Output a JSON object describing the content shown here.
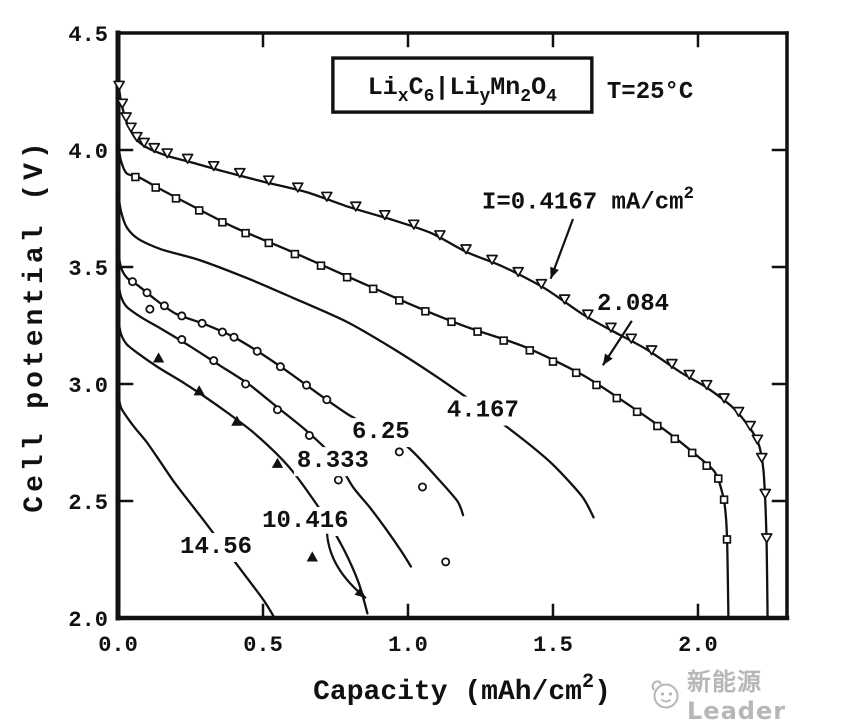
{
  "watermark": {
    "text": "新能源Leader"
  },
  "chart_data": {
    "type": "line",
    "ylabel": "Cell potential (V)",
    "xlabel_segments": [
      {
        "t": "Capacity (mAh/cm"
      },
      {
        "t": "2",
        "s": "sup"
      },
      {
        "t": ")"
      }
    ],
    "xlim": [
      0,
      2.307
    ],
    "ylim": [
      2.0,
      4.5
    ],
    "xticks": [
      {
        "v": 0.0,
        "label": "0.0"
      },
      {
        "v": 0.5,
        "label": "0.5"
      },
      {
        "v": 1.0,
        "label": "1.0"
      },
      {
        "v": 1.5,
        "label": "1.5"
      },
      {
        "v": 2.0,
        "label": "2.0"
      }
    ],
    "yticks": [
      {
        "v": 2.0,
        "label": "2.0"
      },
      {
        "v": 2.5,
        "label": "2.5"
      },
      {
        "v": 3.0,
        "label": "3.0"
      },
      {
        "v": 3.5,
        "label": "3.5"
      },
      {
        "v": 4.0,
        "label": "4.0"
      },
      {
        "v": 4.5,
        "label": "4.5"
      }
    ],
    "cell_label": {
      "segments": [
        {
          "t": "Li"
        },
        {
          "t": "x",
          "s": "sub"
        },
        {
          "t": "C"
        },
        {
          "t": "6",
          "s": "sub"
        },
        {
          "t": "|"
        },
        {
          "t": "Li"
        },
        {
          "t": "y",
          "s": "sub"
        },
        {
          "t": "Mn"
        },
        {
          "t": "2",
          "s": "sub"
        },
        {
          "t": "O"
        },
        {
          "t": "4",
          "s": "sub"
        }
      ],
      "box": [
        0.741,
        4.393,
        1.634,
        4.162
      ]
    },
    "temperature": {
      "text": "T=25°C",
      "pos": [
        1.686,
        4.256
      ]
    },
    "series": [
      {
        "name": "I=0.4167 mA/cm2",
        "current_mA_cm2": 0.4167,
        "marker": "triangle-down",
        "marker_dy": -3,
        "line": [
          [
            0,
            4.3
          ],
          [
            0.01,
            4.21
          ],
          [
            0.03,
            4.12
          ],
          [
            0.06,
            4.05
          ],
          [
            0.1,
            4.01
          ],
          [
            0.17,
            3.975
          ],
          [
            0.26,
            3.945
          ],
          [
            0.36,
            3.91
          ],
          [
            0.5,
            3.865
          ],
          [
            0.65,
            3.82
          ],
          [
            0.8,
            3.755
          ],
          [
            0.95,
            3.7
          ],
          [
            1.08,
            3.645
          ],
          [
            1.2,
            3.565
          ],
          [
            1.33,
            3.5
          ],
          [
            1.47,
            3.41
          ],
          [
            1.6,
            3.3
          ],
          [
            1.7,
            3.23
          ],
          [
            1.82,
            3.15
          ],
          [
            1.94,
            3.05
          ],
          [
            2.03,
            2.985
          ],
          [
            2.12,
            2.9
          ],
          [
            2.18,
            2.81
          ],
          [
            2.21,
            2.74
          ],
          [
            2.225,
            2.64
          ],
          [
            2.232,
            2.5
          ],
          [
            2.237,
            2.3
          ],
          [
            2.24,
            2.0
          ]
        ],
        "marker_x": [
          0.004,
          0.015,
          0.028,
          0.045,
          0.065,
          0.09,
          0.125,
          0.17,
          0.24,
          0.33,
          0.42,
          0.52,
          0.62,
          0.72,
          0.82,
          0.92,
          1.02,
          1.11,
          1.2,
          1.29,
          1.38,
          1.46,
          1.54,
          1.62,
          1.7,
          1.77,
          1.84,
          1.91,
          1.97,
          2.03,
          2.09,
          2.14,
          2.18,
          2.205,
          2.22
        ],
        "marker_points": [
          [
            2.232,
            2.52
          ],
          [
            2.237,
            2.33
          ]
        ]
      },
      {
        "name": "2.084",
        "current_mA_cm2": 2.084,
        "marker": "square",
        "marker_dy": 1,
        "line": [
          [
            0,
            4.03
          ],
          [
            0.01,
            3.955
          ],
          [
            0.03,
            3.9
          ],
          [
            0.07,
            3.885
          ],
          [
            0.15,
            3.83
          ],
          [
            0.25,
            3.765
          ],
          [
            0.4,
            3.67
          ],
          [
            0.6,
            3.565
          ],
          [
            0.8,
            3.455
          ],
          [
            1.0,
            3.345
          ],
          [
            1.2,
            3.245
          ],
          [
            1.4,
            3.16
          ],
          [
            1.6,
            3.04
          ],
          [
            1.75,
            2.92
          ],
          [
            1.9,
            2.79
          ],
          [
            2.0,
            2.69
          ],
          [
            2.06,
            2.62
          ],
          [
            2.09,
            2.5
          ],
          [
            2.1,
            2.35
          ],
          [
            2.105,
            2.0
          ]
        ],
        "marker_x": [
          0.06,
          0.13,
          0.2,
          0.28,
          0.36,
          0.44,
          0.52,
          0.61,
          0.7,
          0.79,
          0.88,
          0.97,
          1.06,
          1.15,
          1.24,
          1.33,
          1.42,
          1.5,
          1.58,
          1.65,
          1.72,
          1.79,
          1.86,
          1.92,
          1.98,
          2.03
        ],
        "marker_points": [
          [
            2.07,
            2.6
          ],
          [
            2.09,
            2.51
          ],
          [
            2.1,
            2.34
          ]
        ]
      },
      {
        "name": "4.167",
        "current_mA_cm2": 4.167,
        "marker": null,
        "marker_dy": 0,
        "line": [
          [
            0,
            3.82
          ],
          [
            0.01,
            3.74
          ],
          [
            0.03,
            3.67
          ],
          [
            0.07,
            3.62
          ],
          [
            0.15,
            3.575
          ],
          [
            0.28,
            3.53
          ],
          [
            0.45,
            3.45
          ],
          [
            0.6,
            3.37
          ],
          [
            0.79,
            3.265
          ],
          [
            0.95,
            3.15
          ],
          [
            1.1,
            3.03
          ],
          [
            1.25,
            2.9
          ],
          [
            1.4,
            2.76
          ],
          [
            1.5,
            2.655
          ],
          [
            1.6,
            2.52
          ],
          [
            1.64,
            2.43
          ]
        ],
        "marker_x": [],
        "marker_points": []
      },
      {
        "name": "6.25",
        "current_mA_cm2": 6.25,
        "marker": "circle",
        "marker_dy": 0,
        "line": [
          [
            0,
            3.57
          ],
          [
            0.01,
            3.5
          ],
          [
            0.03,
            3.455
          ],
          [
            0.07,
            3.42
          ],
          [
            0.13,
            3.36
          ],
          [
            0.2,
            3.3
          ],
          [
            0.3,
            3.255
          ],
          [
            0.4,
            3.2
          ],
          [
            0.5,
            3.125
          ],
          [
            0.6,
            3.04
          ],
          [
            0.7,
            2.95
          ],
          [
            0.8,
            2.865
          ],
          [
            0.9,
            2.8
          ],
          [
            1.0,
            2.73
          ],
          [
            1.1,
            2.6
          ],
          [
            1.17,
            2.5
          ],
          [
            1.19,
            2.44
          ]
        ],
        "marker_x": [
          0.05,
          0.1,
          0.16,
          0.22,
          0.29,
          0.36,
          0.4,
          0.48,
          0.56,
          0.65,
          0.72
        ],
        "marker_points": [
          [
            0.97,
            2.71
          ],
          [
            1.05,
            2.56
          ],
          [
            1.13,
            2.24
          ]
        ]
      },
      {
        "name": "8.333",
        "current_mA_cm2": 8.333,
        "marker": "circle",
        "marker_dy": 0,
        "line": [
          [
            0,
            3.44
          ],
          [
            0.01,
            3.375
          ],
          [
            0.03,
            3.33
          ],
          [
            0.08,
            3.285
          ],
          [
            0.15,
            3.235
          ],
          [
            0.25,
            3.16
          ],
          [
            0.35,
            3.08
          ],
          [
            0.45,
            3.0
          ],
          [
            0.55,
            2.9
          ],
          [
            0.65,
            2.8
          ],
          [
            0.75,
            2.68
          ],
          [
            0.81,
            2.56
          ],
          [
            0.87,
            2.47
          ],
          [
            0.93,
            2.37
          ],
          [
            0.98,
            2.28
          ],
          [
            1.01,
            2.22
          ]
        ],
        "marker_x": [],
        "marker_points": [
          [
            0.11,
            3.32
          ],
          [
            0.22,
            3.19
          ],
          [
            0.33,
            3.1
          ],
          [
            0.44,
            3.0
          ],
          [
            0.55,
            2.89
          ],
          [
            0.66,
            2.78
          ],
          [
            0.76,
            2.59
          ]
        ]
      },
      {
        "name": "10.416",
        "current_mA_cm2": 10.416,
        "marker": "triangle-up",
        "marker_dy": 0,
        "line": [
          [
            0,
            3.28
          ],
          [
            0.01,
            3.215
          ],
          [
            0.03,
            3.17
          ],
          [
            0.07,
            3.13
          ],
          [
            0.14,
            3.07
          ],
          [
            0.22,
            3.01
          ],
          [
            0.3,
            2.945
          ],
          [
            0.38,
            2.875
          ],
          [
            0.46,
            2.8
          ],
          [
            0.54,
            2.71
          ],
          [
            0.6,
            2.63
          ],
          [
            0.66,
            2.53
          ],
          [
            0.72,
            2.42
          ],
          [
            0.78,
            2.29
          ],
          [
            0.83,
            2.15
          ],
          [
            0.86,
            2.02
          ]
        ],
        "marker_x": [],
        "marker_points": [
          [
            0.14,
            3.11
          ],
          [
            0.28,
            2.97
          ],
          [
            0.41,
            2.84
          ],
          [
            0.55,
            2.66
          ],
          [
            0.67,
            2.26
          ]
        ]
      },
      {
        "name": "14.56",
        "current_mA_cm2": 14.56,
        "marker": null,
        "marker_dy": 0,
        "line": [
          [
            0,
            2.96
          ],
          [
            0.01,
            2.9
          ],
          [
            0.03,
            2.86
          ],
          [
            0.06,
            2.81
          ],
          [
            0.1,
            2.75
          ],
          [
            0.15,
            2.66
          ],
          [
            0.2,
            2.57
          ],
          [
            0.3,
            2.41
          ],
          [
            0.4,
            2.245
          ],
          [
            0.5,
            2.08
          ],
          [
            0.54,
            2.0
          ]
        ],
        "marker_x": [],
        "marker_points": []
      }
    ],
    "annotations": [
      {
        "name": "label-0.4167",
        "segments": [
          {
            "t": "I=0.4167 mA/cm"
          },
          {
            "t": "2",
            "s": "sup"
          }
        ],
        "pos": [
          1.255,
          3.785
        ],
        "bg": true,
        "arrow": {
          "from": [
            1.569,
            3.705
          ],
          "to": [
            1.492,
            3.45
          ]
        }
      },
      {
        "name": "label-2.084",
        "segments": [
          {
            "t": "2.084"
          }
        ],
        "pos": [
          1.652,
          3.35
        ],
        "bg": true,
        "arrow": {
          "from": [
            1.772,
            3.27
          ],
          "to": [
            1.672,
            3.08
          ]
        }
      },
      {
        "name": "label-4.167",
        "segments": [
          {
            "t": "4.167"
          }
        ],
        "pos": [
          1.134,
          2.895
        ],
        "bg": true
      },
      {
        "name": "label-6.25",
        "segments": [
          {
            "t": "6.25"
          }
        ],
        "pos": [
          0.807,
          2.803
        ],
        "bg": true
      },
      {
        "name": "label-8.333",
        "segments": [
          {
            "t": "8.333"
          }
        ],
        "pos": [
          0.617,
          2.679
        ],
        "bg": true
      },
      {
        "name": "label-10.416",
        "segments": [
          {
            "t": "10.416"
          }
        ],
        "pos": [
          0.497,
          2.423
        ],
        "bg": true,
        "arrow": {
          "from": [
            0.721,
            2.36
          ],
          "ctrl": [
            0.73,
            2.21
          ],
          "to": [
            0.855,
            2.085
          ]
        }
      },
      {
        "name": "label-14.56",
        "segments": [
          {
            "t": "14.56"
          }
        ],
        "pos": [
          0.214,
          2.312
        ],
        "bg": true
      }
    ]
  }
}
